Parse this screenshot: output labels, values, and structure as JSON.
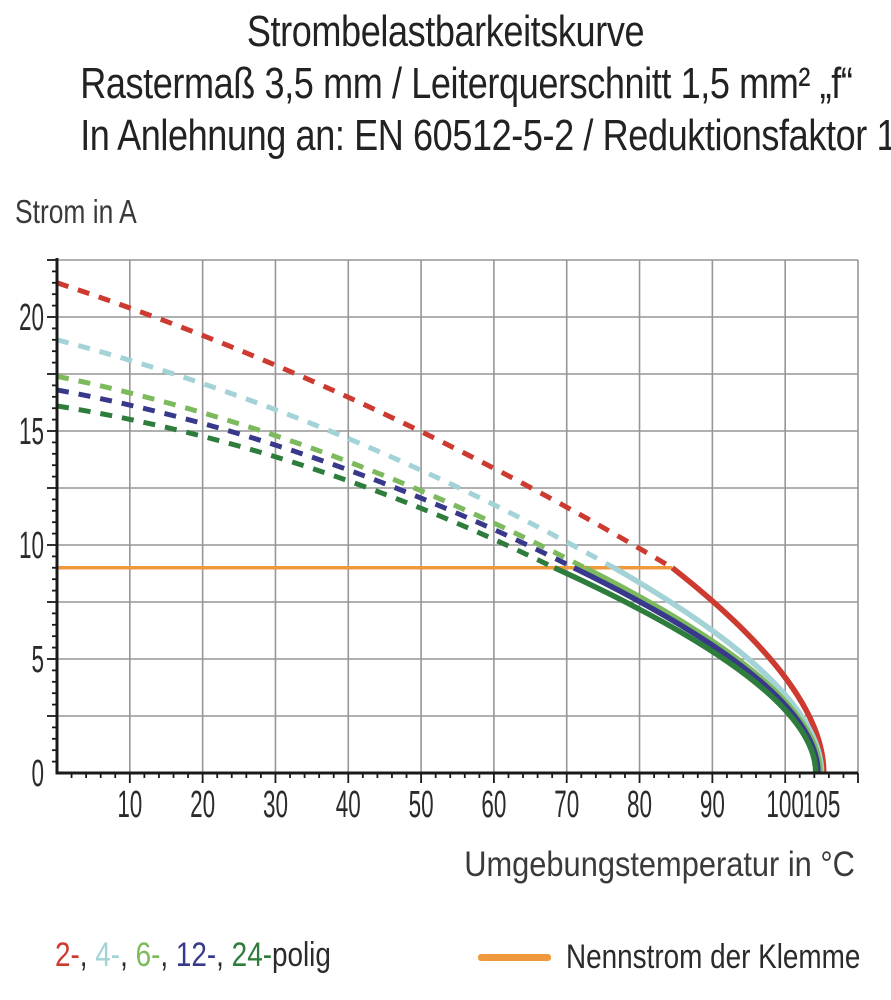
{
  "title": {
    "line1": "Strombelastbarkeitskurve",
    "line2": "Rastermaß 3,5 mm / Leiterquerschnitt 1,5 mm² „f“",
    "line3": "In Anlehnung an: EN 60512-5-2 / Reduktionsfaktor 1"
  },
  "axes": {
    "y_label": "Strom in A",
    "x_label": "Umgebungstemperatur in °C"
  },
  "legend": {
    "poles": {
      "full_text": "2-, 4-, 6-, 12-, 24-polig",
      "parts": [
        {
          "text": "2-",
          "color": "#cc3a30"
        },
        {
          "text": ", ",
          "color": "#2b2b2b"
        },
        {
          "text": "4-",
          "color": "#a3d3d6"
        },
        {
          "text": ", ",
          "color": "#2b2b2b"
        },
        {
          "text": "6-",
          "color": "#7cba5d"
        },
        {
          "text": ", ",
          "color": "#2b2b2b"
        },
        {
          "text": "12-",
          "color": "#39398c"
        },
        {
          "text": ", ",
          "color": "#2b2b2b"
        },
        {
          "text": "24-",
          "color": "#2e7d3c"
        },
        {
          "text": "polig",
          "color": "#2b2b2b"
        }
      ]
    },
    "rated": {
      "label": "Nennstrom der Klemme",
      "swatch_color": "#f0993c"
    }
  },
  "chart_data": {
    "type": "line",
    "title": "Strombelastbarkeitskurve",
    "xlabel": "Umgebungstemperatur in °C",
    "ylabel": "Strom in A",
    "xlim": [
      0,
      110
    ],
    "ylim": [
      0,
      22.5
    ],
    "x_ticks": [
      10,
      20,
      30,
      40,
      50,
      60,
      70,
      80,
      90,
      100,
      105
    ],
    "y_ticks": [
      0,
      5,
      10,
      15,
      20
    ],
    "x_grid_step_c": 10,
    "y_grid_step_a": 2.5,
    "x_minor_tick_step_c": 2,
    "y_minor_tick_step_a": 0.5,
    "grid": true,
    "grid_color": "#969696",
    "axis_color": "#1a1a1a",
    "curve_bow_a": 1.8,
    "rated_current_line": {
      "label": "Nennstrom der Klemme",
      "current_a": 9,
      "temp_start_c": 0,
      "temp_end_c": 84.5,
      "color": "#f0993c"
    },
    "series": [
      {
        "name": "2-polig",
        "color": "#cc3a30",
        "style": "dashed-then-solid",
        "start_current_a": 21.5,
        "knee_temp_c": 84.5,
        "max_temp_c": 105.3,
        "points": [
          [
            0,
            21.5
          ],
          [
            20,
            18.8
          ],
          [
            40,
            16.0
          ],
          [
            60,
            13.2
          ],
          [
            84.5,
            9.0
          ],
          [
            98,
            4.8
          ],
          [
            105.3,
            0
          ]
        ]
      },
      {
        "name": "4-polig",
        "color": "#a3d3d6",
        "style": "dashed-then-solid",
        "start_current_a": 19.0,
        "knee_temp_c": 76.5,
        "max_temp_c": 105.0,
        "points": [
          [
            0,
            19.0
          ],
          [
            20,
            17.0
          ],
          [
            40,
            14.9
          ],
          [
            60,
            12.4
          ],
          [
            76.5,
            9.0
          ],
          [
            96,
            5.0
          ],
          [
            105,
            0
          ]
        ]
      },
      {
        "name": "6-polig",
        "color": "#7cba5d",
        "style": "dashed-then-solid",
        "start_current_a": 17.4,
        "knee_temp_c": 72.5,
        "max_temp_c": 104.8,
        "points": [
          [
            0,
            17.4
          ],
          [
            40,
            13.8
          ],
          [
            72.5,
            9.0
          ],
          [
            95,
            4.6
          ],
          [
            104.8,
            0
          ]
        ]
      },
      {
        "name": "12-polig",
        "color": "#39398c",
        "style": "dashed-then-solid",
        "start_current_a": 16.8,
        "knee_temp_c": 71.0,
        "max_temp_c": 104.5,
        "points": [
          [
            0,
            16.8
          ],
          [
            40,
            13.3
          ],
          [
            71,
            9.0
          ],
          [
            94.5,
            4.5
          ],
          [
            104.5,
            0
          ]
        ]
      },
      {
        "name": "24-polig",
        "color": "#2e7d3c",
        "style": "dashed-then-solid",
        "start_current_a": 16.1,
        "knee_temp_c": 68.3,
        "max_temp_c": 104.2,
        "points": [
          [
            0,
            16.1
          ],
          [
            40,
            12.8
          ],
          [
            68.3,
            9.0
          ],
          [
            93.5,
            4.4
          ],
          [
            104.2,
            0
          ]
        ]
      }
    ]
  }
}
